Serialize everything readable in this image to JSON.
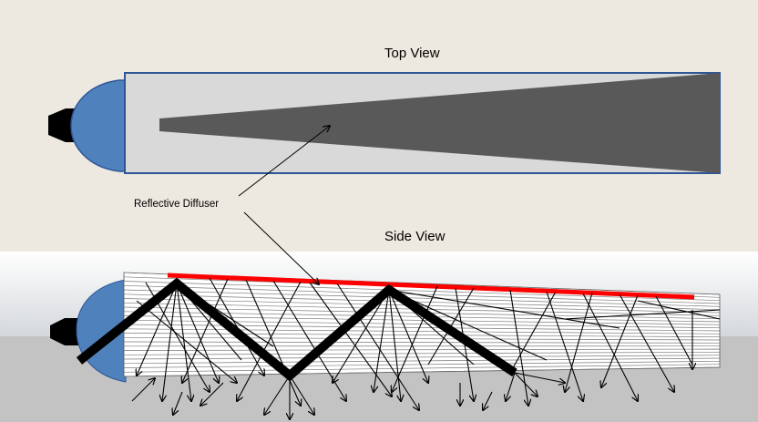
{
  "labels": {
    "top_view": "Top View",
    "side_view": "Side View",
    "reflective_diffuser": "Reflective Diffuser"
  },
  "colors": {
    "upper_background": "#ede9e0",
    "lower_background": "#c3c3c3",
    "side_band": "#d9dde1",
    "lens_blue": "#4f81bd",
    "light_pipe_fill": "#d9d9d9",
    "light_pipe_outline": "#2f5597",
    "diffuser_dark": "#595959",
    "reflective_strip": "#ff0000",
    "emitter": "#000000"
  },
  "icons": {
    "emitter_top": "led-emitter-icon",
    "emitter_side": "led-emitter-icon"
  }
}
